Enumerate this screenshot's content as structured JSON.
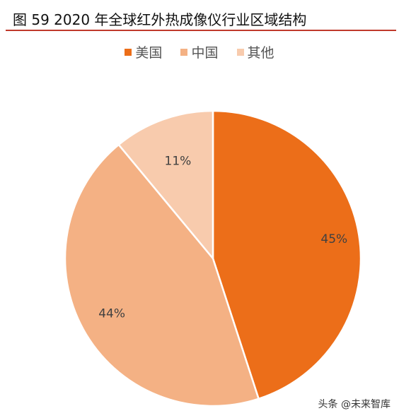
{
  "header": {
    "title": "图 59 2020 年全球红外热成像仪行业区域结构"
  },
  "chart_data": {
    "type": "pie",
    "title": "图 59 2020 年全球红外热成像仪行业区域结构",
    "legend_position": "top",
    "slices": [
      {
        "label": "美国",
        "value": 45,
        "display": "45%",
        "color": "#EC6E19"
      },
      {
        "label": "中国",
        "value": 44,
        "display": "44%",
        "color": "#F4B184"
      },
      {
        "label": "其他",
        "value": 11,
        "display": "11%",
        "color": "#F8CBAD"
      }
    ]
  },
  "watermark": {
    "text": "头条 @未来智库"
  }
}
